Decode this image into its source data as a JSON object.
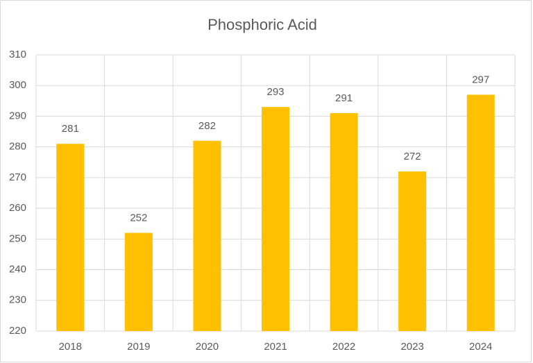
{
  "chart_data": {
    "type": "bar",
    "title": "Phosphoric Acid",
    "categories": [
      "2018",
      "2019",
      "2020",
      "2021",
      "2022",
      "2023",
      "2024"
    ],
    "values": [
      281,
      252,
      282,
      293,
      291,
      272,
      297
    ],
    "color": "#ffc000",
    "ylim": [
      220,
      310
    ],
    "yticks": [
      220,
      230,
      240,
      250,
      260,
      270,
      280,
      290,
      300,
      310
    ],
    "grid": true
  }
}
